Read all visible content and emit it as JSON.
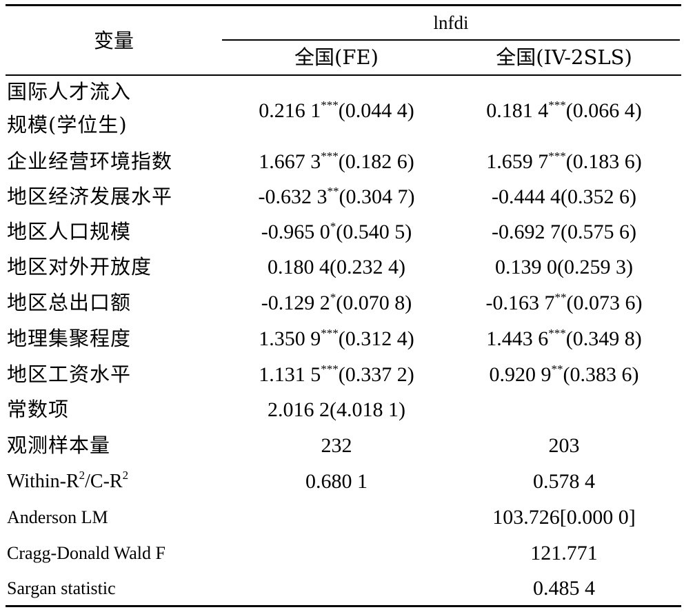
{
  "header": {
    "row_label": "变量",
    "dependent_var": "lnfdi",
    "col1": "全国(FE)",
    "col2": "全国(IV-2SLS)"
  },
  "rows": [
    {
      "label_line1": "国际人才流入",
      "label_line2": "规模(学位生)",
      "c1_val": "0.216 1",
      "c1_sig": "***",
      "c1_se": "(0.044 4)",
      "c2_val": "0.181 4",
      "c2_sig": "***",
      "c2_se": "(0.066 4)"
    },
    {
      "label": "企业经营环境指数",
      "c1_val": "1.667 3",
      "c1_sig": "***",
      "c1_se": "(0.182 6)",
      "c2_val": "1.659 7",
      "c2_sig": "***",
      "c2_se": "(0.183 6)"
    },
    {
      "label": "地区经济发展水平",
      "c1_val": "-0.632 3",
      "c1_sig": "**",
      "c1_se": "(0.304 7)",
      "c2_val": "-0.444 4",
      "c2_sig": "",
      "c2_se": "(0.352 6)"
    },
    {
      "label": "地区人口规模",
      "c1_val": "-0.965 0",
      "c1_sig": "*",
      "c1_se": "(0.540 5)",
      "c2_val": "-0.692 7",
      "c2_sig": "",
      "c2_se": "(0.575 6)"
    },
    {
      "label": "地区对外开放度",
      "c1_val": "0.180 4",
      "c1_sig": "",
      "c1_se": "(0.232 4)",
      "c2_val": "0.139 0",
      "c2_sig": "",
      "c2_se": "(0.259 3)"
    },
    {
      "label": "地区总出口额",
      "c1_val": "-0.129 2",
      "c1_sig": "*",
      "c1_se": "(0.070 8)",
      "c2_val": "-0.163 7",
      "c2_sig": "**",
      "c2_se": "(0.073 6)"
    },
    {
      "label": "地理集聚程度",
      "c1_val": "1.350 9",
      "c1_sig": "***",
      "c1_se": "(0.312 4)",
      "c2_val": "1.443 6",
      "c2_sig": "***",
      "c2_se": "(0.349 8)"
    },
    {
      "label": "地区工资水平",
      "c1_val": "1.131 5",
      "c1_sig": "***",
      "c1_se": "(0.337 2)",
      "c2_val": "0.920 9",
      "c2_sig": "**",
      "c2_se": "(0.383 6)"
    },
    {
      "label": "常数项",
      "c1": "2.016 2(4.018 1)",
      "c2": ""
    },
    {
      "label": "观测样本量",
      "c1": "232",
      "c2": "203"
    },
    {
      "label_pre": "Within-R",
      "label_sup1": "2",
      "label_mid": "/C-R",
      "label_sup2": "2",
      "c1": "0.680 1",
      "c2": "0.578 4"
    },
    {
      "label": "Anderson LM",
      "c1": "",
      "c2": "103.726[0.000 0]"
    },
    {
      "label": "Cragg-Donald Wald F",
      "c1": "",
      "c2": "121.771"
    },
    {
      "label": "Sargan statistic",
      "c1": "",
      "c2": "0.485 4"
    }
  ]
}
